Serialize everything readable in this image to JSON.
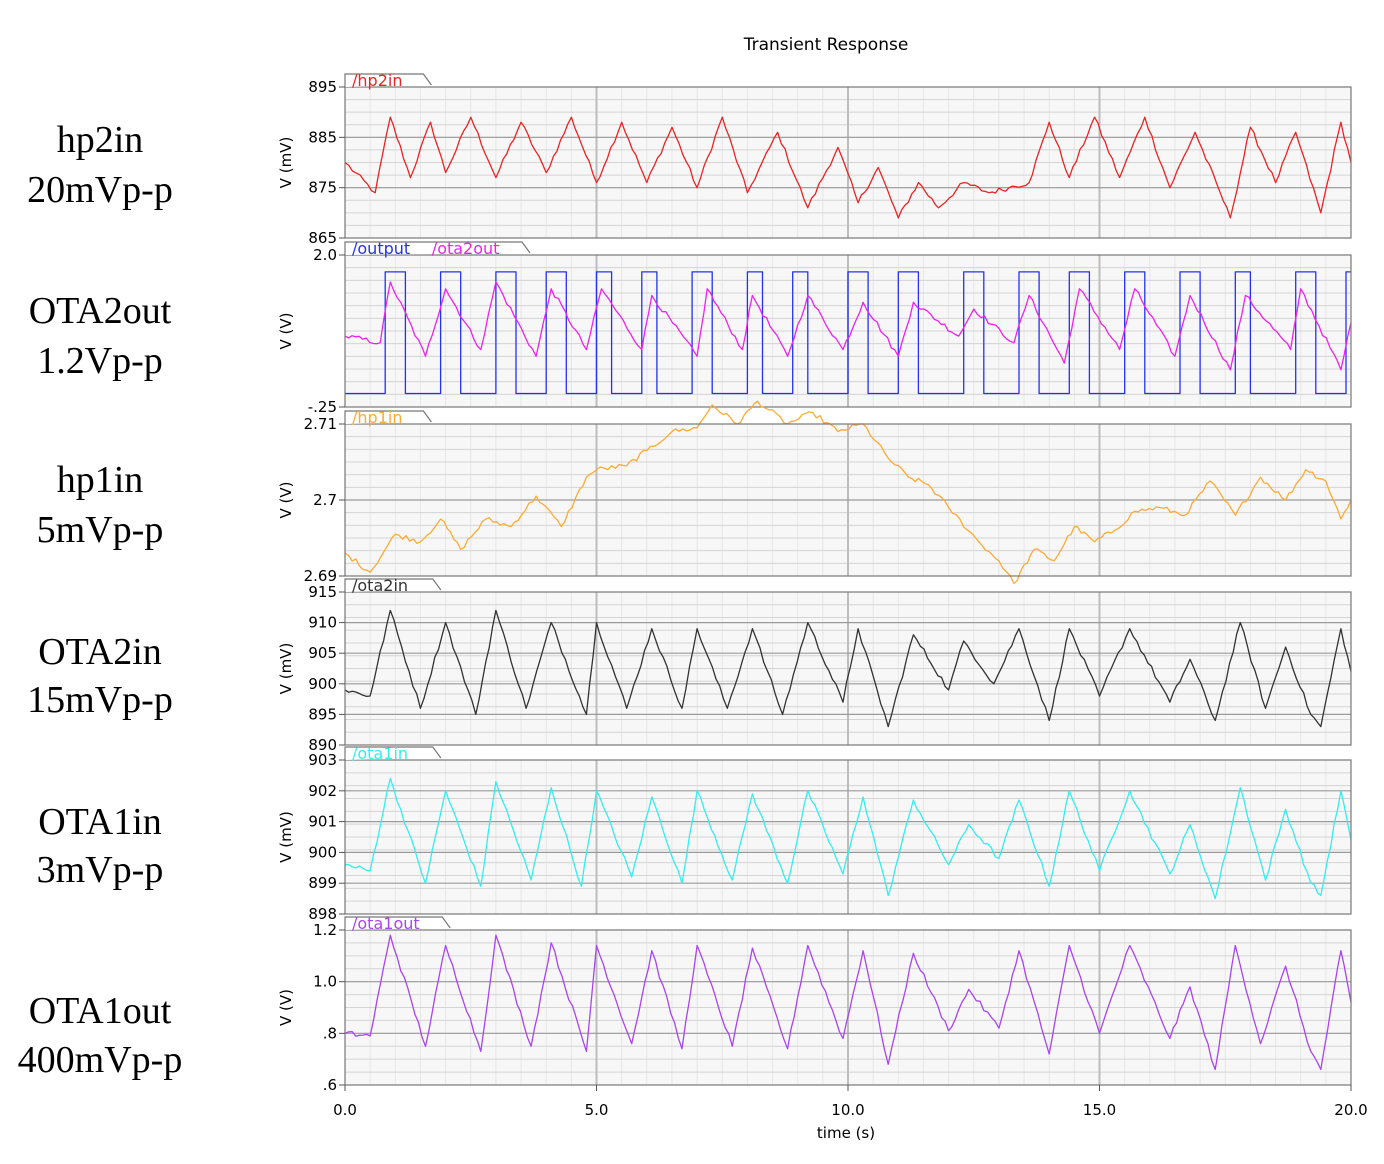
{
  "title": "Transient Response",
  "xlabel": "time (s)",
  "x_ticks": [
    "0.0",
    "5.0",
    "10.0",
    "15.0",
    "20.0"
  ],
  "side_labels": [
    {
      "line1": "hp2in",
      "line2": "20mVp-p"
    },
    {
      "line1": "OTA2out",
      "line2": "1.2Vp-p"
    },
    {
      "line1": "hp1in",
      "line2": "5mVp-p"
    },
    {
      "line1": "OTA2in",
      "line2": "15mVp-p"
    },
    {
      "line1": "OTA1in",
      "line2": "3mVp-p"
    },
    {
      "line1": "OTA1out",
      "line2": "400mVp-p"
    }
  ],
  "chart_data": [
    {
      "type": "line",
      "ylabel": "V (mV)",
      "ylim": [
        865,
        895
      ],
      "y_ticks": [
        "865",
        "875",
        "885",
        "895"
      ],
      "y_tick_values": [
        865,
        875,
        885,
        895
      ],
      "xlim": [
        0,
        20
      ],
      "grid": true,
      "legend_position": "top-left",
      "series": [
        {
          "name": "/hp2in",
          "color": "#ee2222",
          "x": [
            0,
            0.6,
            0.9,
            1.3,
            1.7,
            2.0,
            2.5,
            3.0,
            3.5,
            4.0,
            4.5,
            5.0,
            5.5,
            6.0,
            6.5,
            7.0,
            7.5,
            8.0,
            8.6,
            9.2,
            9.8,
            10.2,
            10.6,
            11.0,
            11.4,
            11.8,
            12.3,
            12.8,
            13.2,
            13.6,
            14.0,
            14.4,
            14.9,
            15.4,
            15.9,
            16.4,
            16.9,
            17.4,
            17.6,
            18.0,
            18.5,
            18.9,
            19.4,
            19.8,
            20.0
          ],
          "values": [
            880,
            874,
            889,
            877,
            888,
            878,
            889,
            877,
            888,
            878,
            889,
            876,
            888,
            876,
            887,
            875,
            889,
            874,
            886,
            871,
            883,
            872,
            879,
            869,
            876,
            871,
            876,
            874,
            875,
            876,
            888,
            877,
            889,
            877,
            889,
            875,
            886,
            874,
            869,
            887,
            876,
            886,
            870,
            888,
            880
          ]
        }
      ]
    },
    {
      "type": "line",
      "ylabel": "V (V)",
      "ylim": [
        -0.25,
        2.0
      ],
      "y_ticks": [
        "2.0",
        "-.25"
      ],
      "y_tick_values": [
        2.0,
        -0.25
      ],
      "xlim": [
        0,
        20
      ],
      "grid": true,
      "legend_position": "top-left",
      "series": [
        {
          "name": "/output",
          "color": "#2233ee",
          "x": [
            0,
            0.8,
            0.8,
            1.2,
            1.2,
            1.9,
            1.9,
            2.3,
            2.3,
            3.0,
            3.0,
            3.4,
            3.4,
            4.0,
            4.0,
            4.4,
            4.4,
            5.0,
            5.0,
            5.3,
            5.3,
            5.9,
            5.9,
            6.2,
            6.2,
            6.9,
            6.9,
            7.3,
            7.3,
            8.0,
            8.0,
            8.3,
            8.3,
            8.9,
            8.9,
            9.2,
            9.2,
            10.0,
            10.0,
            10.4,
            10.4,
            11.0,
            11.0,
            11.4,
            11.4,
            12.3,
            12.3,
            12.7,
            12.7,
            13.4,
            13.4,
            13.8,
            13.8,
            14.4,
            14.4,
            14.8,
            14.8,
            15.5,
            15.5,
            15.9,
            15.9,
            16.6,
            16.6,
            17.0,
            17.0,
            17.7,
            17.7,
            18.0,
            18.0,
            18.9,
            18.9,
            19.3,
            19.3,
            19.9,
            19.9,
            20.0
          ],
          "values": [
            -0.05,
            -0.05,
            1.75,
            1.75,
            -0.05,
            -0.05,
            1.75,
            1.75,
            -0.05,
            -0.05,
            1.75,
            1.75,
            -0.05,
            -0.05,
            1.75,
            1.75,
            -0.05,
            -0.05,
            1.75,
            1.75,
            -0.05,
            -0.05,
            1.75,
            1.75,
            -0.05,
            -0.05,
            1.75,
            1.75,
            -0.05,
            -0.05,
            1.75,
            1.75,
            -0.05,
            -0.05,
            1.75,
            1.75,
            -0.05,
            -0.05,
            1.75,
            1.75,
            -0.05,
            -0.05,
            1.75,
            1.75,
            -0.05,
            -0.05,
            1.75,
            1.75,
            -0.05,
            -0.05,
            1.75,
            1.75,
            -0.05,
            -0.05,
            1.75,
            1.75,
            -0.05,
            -0.05,
            1.75,
            1.75,
            -0.05,
            -0.05,
            1.75,
            1.75,
            -0.05,
            -0.05,
            1.75,
            1.75,
            -0.05,
            -0.05,
            1.75,
            1.75,
            -0.05,
            -0.05,
            1.75,
            1.75
          ]
        },
        {
          "name": "/ota2out",
          "color": "#ee22ee",
          "x": [
            0,
            0.7,
            0.9,
            1.6,
            2.0,
            2.7,
            3.0,
            3.8,
            4.1,
            4.8,
            5.1,
            5.9,
            6.1,
            7.0,
            7.2,
            7.9,
            8.1,
            8.8,
            9.2,
            9.9,
            10.3,
            11.0,
            11.3,
            12.2,
            12.5,
            13.3,
            13.6,
            14.3,
            14.6,
            15.4,
            15.7,
            16.5,
            16.8,
            17.6,
            17.9,
            18.8,
            19.0,
            19.8,
            20.0
          ],
          "values": [
            0.8,
            0.7,
            1.6,
            0.5,
            1.5,
            0.6,
            1.6,
            0.5,
            1.5,
            0.6,
            1.5,
            0.6,
            1.4,
            0.5,
            1.5,
            0.6,
            1.4,
            0.5,
            1.4,
            0.6,
            1.3,
            0.5,
            1.3,
            0.8,
            1.2,
            0.7,
            1.4,
            0.4,
            1.5,
            0.6,
            1.5,
            0.5,
            1.4,
            0.3,
            1.4,
            0.6,
            1.5,
            0.3,
            1.0
          ]
        }
      ]
    },
    {
      "type": "line",
      "ylabel": "V (V)",
      "ylim": [
        2.69,
        2.71
      ],
      "y_ticks": [
        "2.69",
        "2.7",
        "2.71"
      ],
      "y_tick_values": [
        2.69,
        2.7,
        2.71
      ],
      "xlim": [
        0,
        20
      ],
      "grid": true,
      "legend_position": "top-left",
      "series": [
        {
          "name": "/hp1in",
          "color": "#ffaa33",
          "x": [
            0,
            0.5,
            1.0,
            1.5,
            1.9,
            2.3,
            2.8,
            3.3,
            3.8,
            4.3,
            4.8,
            5.0,
            5.6,
            6.0,
            6.5,
            7.0,
            7.3,
            7.8,
            8.2,
            8.8,
            9.3,
            9.8,
            10.3,
            10.8,
            11.2,
            11.6,
            12.0,
            12.6,
            13.0,
            13.3,
            13.7,
            14.1,
            14.5,
            14.9,
            15.3,
            15.7,
            16.2,
            16.7,
            17.2,
            17.7,
            18.2,
            18.7,
            19.1,
            19.5,
            19.8,
            20.0
          ],
          "values": [
            2.693,
            2.6905,
            2.6955,
            2.6945,
            2.6975,
            2.6935,
            2.6975,
            2.6965,
            2.7005,
            2.6965,
            2.703,
            2.704,
            2.7045,
            2.7065,
            2.709,
            2.7095,
            2.7125,
            2.71,
            2.713,
            2.71,
            2.7115,
            2.709,
            2.71,
            2.7055,
            2.703,
            2.702,
            2.699,
            2.6945,
            2.692,
            2.689,
            2.6935,
            2.692,
            2.6965,
            2.6945,
            2.696,
            2.6985,
            2.699,
            2.698,
            2.7025,
            2.698,
            2.703,
            2.7,
            2.704,
            2.7025,
            2.6975,
            2.7
          ]
        }
      ]
    },
    {
      "type": "line",
      "ylabel": "V (mV)",
      "ylim": [
        890,
        915
      ],
      "y_ticks": [
        "890",
        "895",
        "900",
        "905",
        "910",
        "915"
      ],
      "y_tick_values": [
        890,
        895,
        900,
        905,
        910,
        915
      ],
      "xlim": [
        0,
        20
      ],
      "grid": true,
      "legend_position": "top-left",
      "series": [
        {
          "name": "/ota2in",
          "color": "#333333",
          "x": [
            0,
            0.5,
            0.9,
            1.5,
            2.0,
            2.6,
            3.0,
            3.6,
            4.1,
            4.8,
            5.0,
            5.6,
            6.1,
            6.7,
            7.0,
            7.6,
            8.1,
            8.7,
            9.2,
            9.9,
            10.2,
            10.8,
            11.3,
            12.0,
            12.3,
            12.9,
            13.4,
            14.0,
            14.4,
            15.0,
            15.6,
            16.4,
            16.8,
            17.3,
            17.8,
            18.3,
            18.7,
            19.2,
            19.4,
            19.8,
            20.0
          ],
          "values": [
            899,
            898,
            912,
            896,
            910,
            895,
            912,
            896,
            910,
            895,
            910,
            896,
            909,
            896,
            909,
            896,
            909,
            895,
            910,
            897,
            909,
            893,
            908,
            899,
            907,
            900,
            909,
            894,
            909,
            898,
            909,
            897,
            904,
            894,
            910,
            896,
            906,
            895,
            893,
            909,
            902
          ]
        }
      ]
    },
    {
      "type": "line",
      "ylabel": "V (mV)",
      "ylim": [
        898,
        903
      ],
      "y_ticks": [
        "898",
        "899",
        "900",
        "901",
        "902",
        "903"
      ],
      "y_tick_values": [
        898,
        899,
        900,
        901,
        902,
        903
      ],
      "xlim": [
        0,
        20
      ],
      "grid": true,
      "legend_position": "top-left",
      "series": [
        {
          "name": "/ota1in",
          "color": "#33eeee",
          "x": [
            0,
            0.5,
            0.9,
            1.6,
            2.0,
            2.7,
            3.0,
            3.7,
            4.1,
            4.7,
            5.0,
            5.7,
            6.1,
            6.7,
            7.0,
            7.7,
            8.1,
            8.8,
            9.2,
            9.9,
            10.3,
            10.8,
            11.3,
            12.0,
            12.4,
            13.0,
            13.4,
            14.0,
            14.4,
            15.0,
            15.6,
            16.4,
            16.8,
            17.3,
            17.8,
            18.3,
            18.7,
            19.2,
            19.4,
            19.8,
            20.0
          ],
          "values": [
            899.6,
            899.4,
            902.4,
            899.0,
            902.0,
            898.9,
            902.3,
            899.1,
            902.1,
            898.9,
            902.0,
            899.2,
            901.8,
            899.0,
            902.0,
            899.1,
            901.9,
            899.0,
            902.0,
            899.3,
            901.8,
            898.6,
            901.7,
            899.6,
            900.9,
            899.8,
            901.7,
            898.9,
            902.0,
            899.4,
            902.0,
            899.3,
            900.9,
            898.5,
            902.1,
            899.1,
            901.4,
            899.0,
            898.6,
            902.0,
            900.4
          ]
        }
      ]
    },
    {
      "type": "line",
      "ylabel": "V (V)",
      "ylim": [
        0.6,
        1.2
      ],
      "y_ticks": [
        ".6",
        ".8",
        "1.0",
        "1.2"
      ],
      "y_tick_values": [
        0.6,
        0.8,
        1.0,
        1.2
      ],
      "xlim": [
        0,
        20
      ],
      "grid": true,
      "legend_position": "top-left",
      "series": [
        {
          "name": "/ota1out",
          "color": "#aa44ee",
          "x": [
            0,
            0.5,
            0.9,
            1.6,
            2.0,
            2.7,
            3.0,
            3.7,
            4.1,
            4.8,
            5.0,
            5.7,
            6.1,
            6.7,
            7.0,
            7.7,
            8.1,
            8.8,
            9.2,
            9.9,
            10.3,
            10.8,
            11.3,
            12.0,
            12.4,
            13.0,
            13.4,
            14.0,
            14.4,
            15.0,
            15.6,
            16.4,
            16.8,
            17.3,
            17.7,
            18.2,
            18.7,
            19.2,
            19.4,
            19.8,
            20.0
          ],
          "values": [
            0.8,
            0.79,
            1.18,
            0.75,
            1.14,
            0.73,
            1.18,
            0.75,
            1.15,
            0.73,
            1.14,
            0.76,
            1.12,
            0.74,
            1.14,
            0.75,
            1.13,
            0.74,
            1.14,
            0.78,
            1.12,
            0.68,
            1.11,
            0.81,
            0.97,
            0.82,
            1.12,
            0.72,
            1.14,
            0.8,
            1.14,
            0.78,
            0.98,
            0.66,
            1.14,
            0.76,
            1.06,
            0.73,
            0.66,
            1.12,
            0.92
          ]
        }
      ]
    }
  ]
}
